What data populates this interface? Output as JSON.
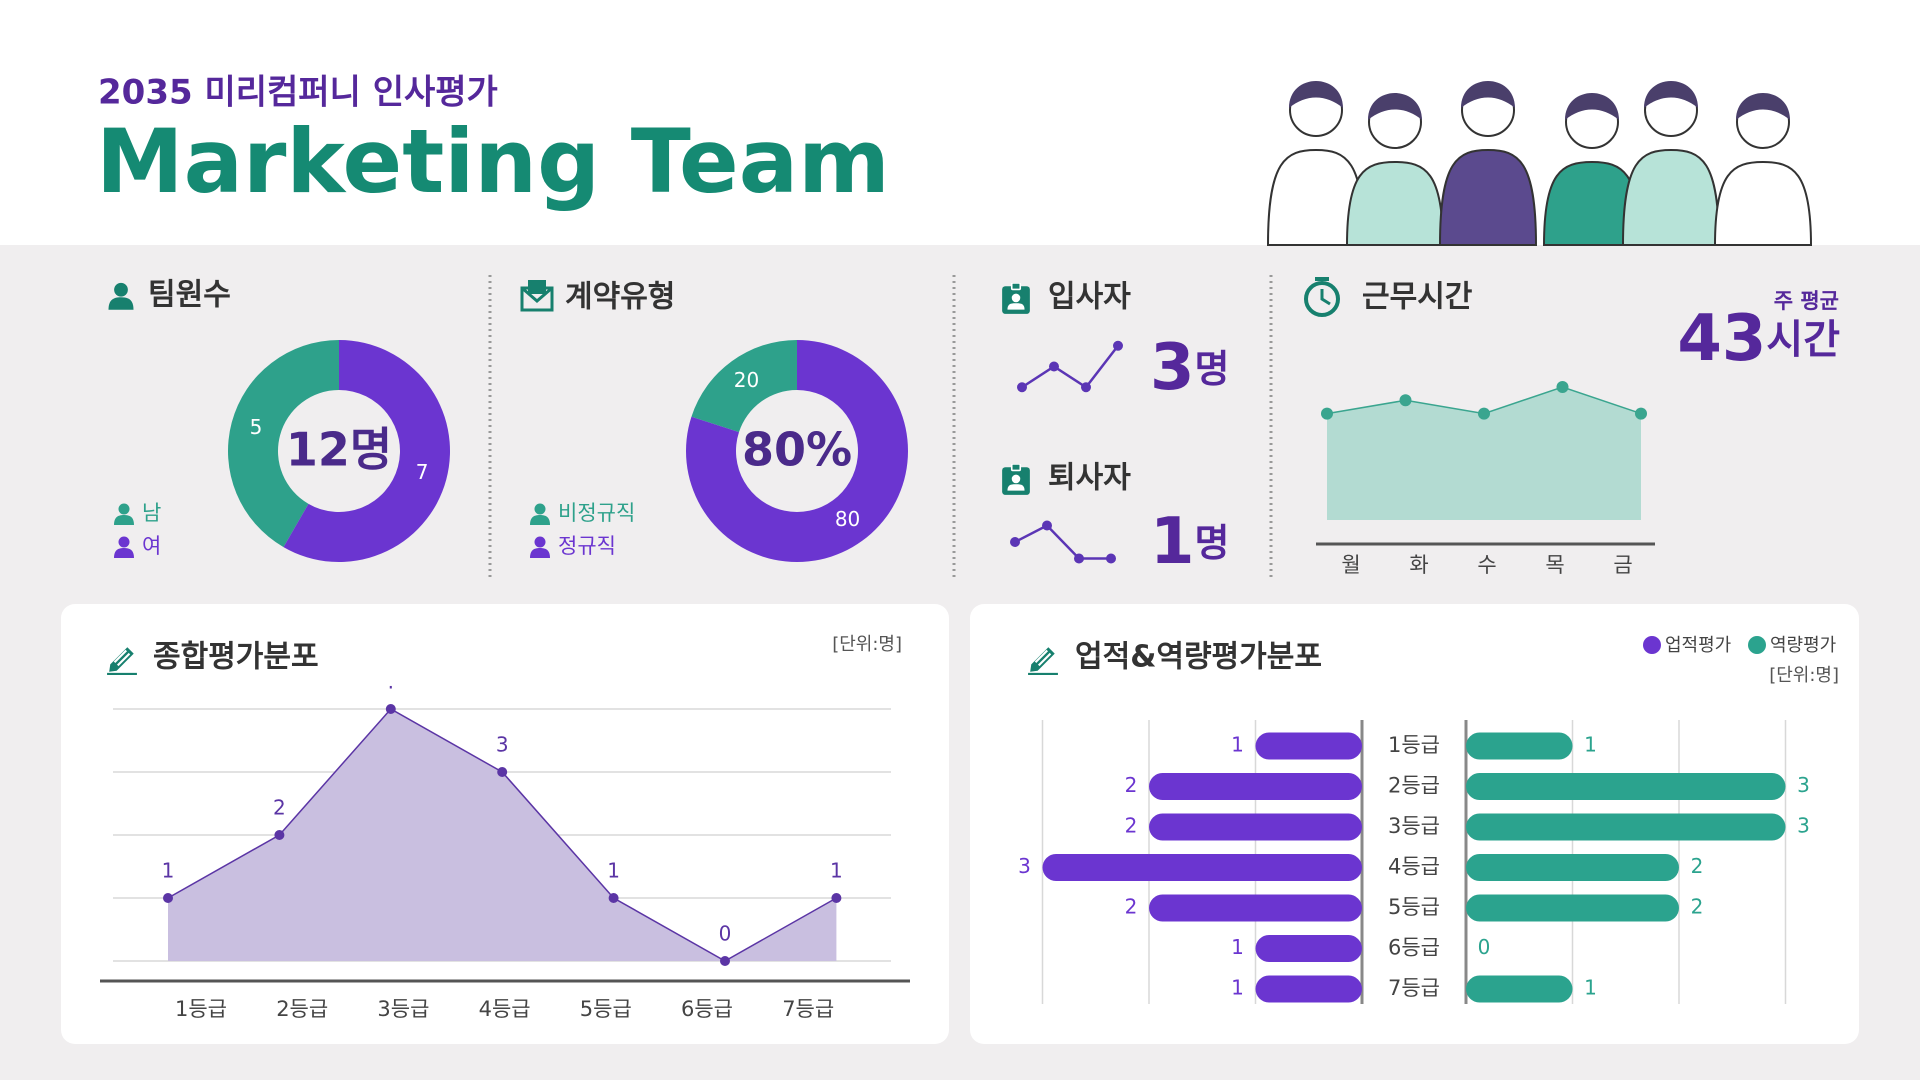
{
  "header": {
    "subtitle": "2035 미리컴퍼니 인사평가",
    "title": "Marketing Team"
  },
  "chart_data": [
    {
      "type": "pie",
      "title": "팀원수",
      "categories": [
        "남",
        "여"
      ],
      "values": [
        5,
        7
      ],
      "colors": [
        "#2ea18b",
        "#6b35d0"
      ],
      "direction": "counterclockwise",
      "center_label": "12명"
    },
    {
      "type": "pie",
      "title": "계약유형",
      "categories": [
        "비정규직",
        "정규직"
      ],
      "values": [
        20,
        80
      ],
      "colors": [
        "#2ea18b",
        "#6b35d0"
      ],
      "direction": "counterclockwise",
      "center_label": "80%"
    },
    {
      "type": "line",
      "title": "입사자",
      "values": [
        1,
        2,
        1,
        3
      ],
      "ylim": [
        0,
        4
      ],
      "color": "#5b35b5",
      "total": 3,
      "unit": "명"
    },
    {
      "type": "line",
      "title": "퇴사자",
      "values": [
        2,
        3,
        1,
        1
      ],
      "ylim": [
        0,
        4
      ],
      "color": "#5b35b5",
      "total": 1,
      "unit": "명"
    },
    {
      "type": "area",
      "title": "근무시간",
      "categories": [
        "월",
        "화",
        "수",
        "목",
        "금"
      ],
      "values": [
        8,
        9,
        8,
        10,
        8
      ],
      "ylim": [
        0,
        10
      ],
      "color": "#3aa58f",
      "fill": "#b3dbd2",
      "summary_label": "주 평균",
      "summary_value": 43,
      "summary_unit": "시간"
    },
    {
      "type": "area",
      "title": "종합평가분포",
      "unit_note": "[단위:명]",
      "categories": [
        "1등급",
        "2등급",
        "3등급",
        "4등급",
        "5등급",
        "6등급",
        "7등급"
      ],
      "values": [
        1,
        2,
        4,
        3,
        1,
        0,
        1
      ],
      "value_labels": [
        "1",
        "2",
        ".",
        "3",
        "1",
        "0",
        "1"
      ],
      "ylim": [
        0,
        4
      ],
      "yticks": [
        0,
        1,
        2,
        3,
        4
      ],
      "grid": true,
      "color": "#5b35a5",
      "fill": "#c9bfe0"
    },
    {
      "type": "bar",
      "orientation": "horizontal",
      "title": "업적&역량평가분포",
      "unit_note": "[단위:명]",
      "categories": [
        "1등급",
        "2등급",
        "3등급",
        "4등급",
        "5등급",
        "6등급",
        "7등급"
      ],
      "series": [
        {
          "name": "업적평가",
          "color": "#6b35d0",
          "values": [
            1,
            2,
            2,
            3,
            2,
            1,
            1
          ]
        },
        {
          "name": "역량평가",
          "color": "#2ba38e",
          "values": [
            1,
            3,
            3,
            2,
            2,
            0,
            1
          ]
        }
      ],
      "xlim": [
        0,
        3
      ],
      "xticks": [
        0,
        1,
        2,
        3
      ],
      "grid": true
    }
  ]
}
